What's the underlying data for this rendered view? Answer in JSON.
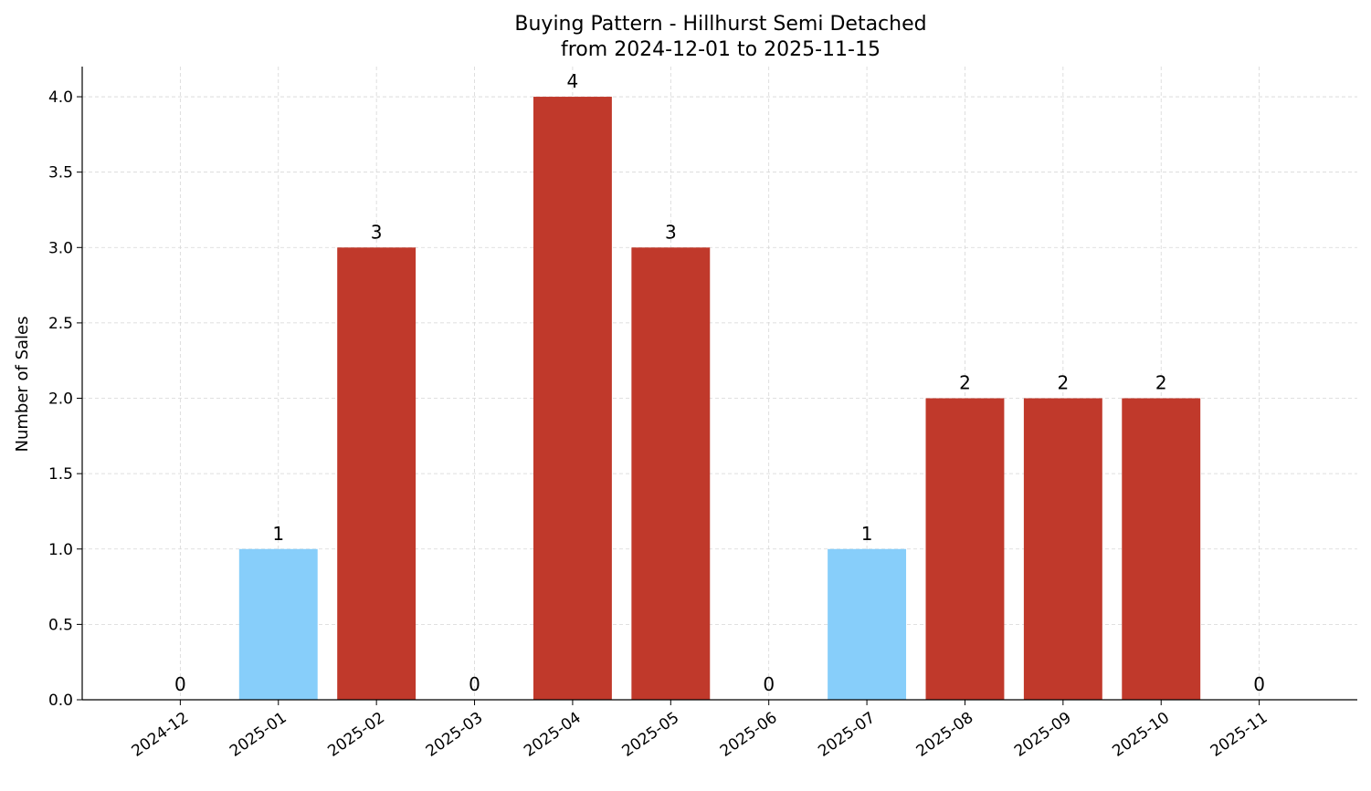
{
  "chart_data": {
    "type": "bar",
    "title": "Buying Pattern - Hillhurst Semi Detached",
    "subtitle": "from 2024-12-01 to 2025-11-15",
    "xlabel": "",
    "ylabel": "Number of Sales",
    "categories": [
      "2024-12",
      "2025-01",
      "2025-02",
      "2025-03",
      "2025-04",
      "2025-05",
      "2025-06",
      "2025-07",
      "2025-08",
      "2025-09",
      "2025-10",
      "2025-11"
    ],
    "values": [
      0,
      1,
      3,
      0,
      4,
      3,
      0,
      1,
      2,
      2,
      2,
      0
    ],
    "data_labels": [
      "0",
      "1",
      "3",
      "0",
      "4",
      "3",
      "0",
      "1",
      "2",
      "2",
      "2",
      "0"
    ],
    "ylim": [
      0,
      4.2
    ],
    "yticks": [
      0,
      0.5,
      1,
      1.5,
      2,
      2.5,
      3,
      3.5,
      4
    ],
    "ytick_labels": [
      "0.0",
      "0.5",
      "1.0",
      "1.5",
      "2.0",
      "2.5",
      "3.0",
      "3.5",
      "4.0"
    ],
    "grid": true,
    "colors": {
      "high": "#c0392b",
      "low": "#87cefa"
    },
    "bar_colors": [
      "#87cefa",
      "#87cefa",
      "#c0392b",
      "#87cefa",
      "#c0392b",
      "#c0392b",
      "#87cefa",
      "#87cefa",
      "#c0392b",
      "#c0392b",
      "#c0392b",
      "#87cefa"
    ]
  }
}
